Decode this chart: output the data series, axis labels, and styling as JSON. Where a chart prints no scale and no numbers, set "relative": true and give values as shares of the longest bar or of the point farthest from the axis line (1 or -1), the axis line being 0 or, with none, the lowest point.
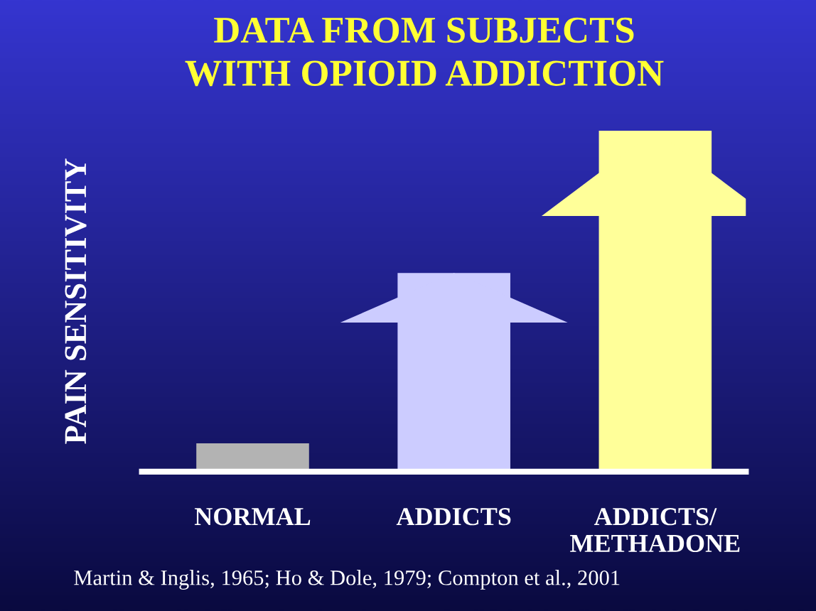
{
  "chart_data": {
    "type": "bar",
    "relative": true,
    "title": "DATA FROM SUBJECTS\nWITH OPIOID ADDICTION",
    "ylabel": "PAIN SENSITIVITY",
    "categories": [
      "NORMAL",
      "ADDICTS",
      "ADDICTS/\nMETHADONE"
    ],
    "values": [
      0.083,
      0.583,
      1
    ],
    "colors": [
      "#b3b3b3",
      "#ccccff",
      "#ffff99"
    ],
    "annotations": [
      "Martin & Inglis, 1965; Ho & Dole, 1979; Compton et al., 2001"
    ]
  }
}
